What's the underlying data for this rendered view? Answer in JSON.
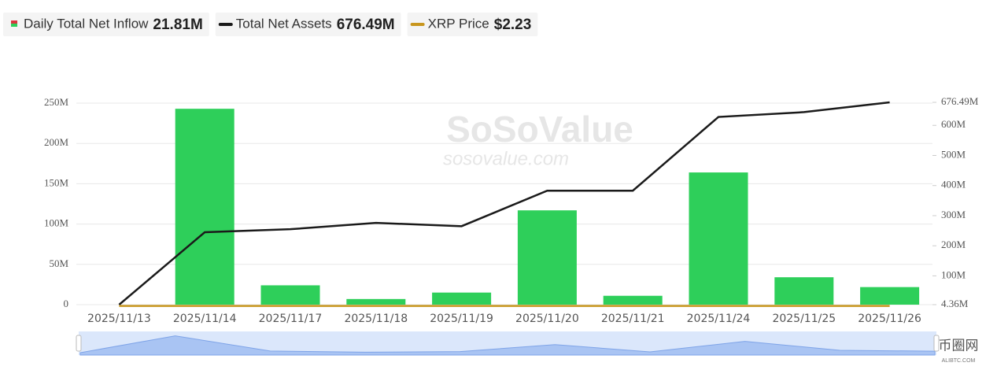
{
  "chart_data": {
    "type": "bar_line",
    "categories": [
      "2025/11/13",
      "2025/11/14",
      "2025/11/17",
      "2025/11/18",
      "2025/11/19",
      "2025/11/20",
      "2025/11/21",
      "2025/11/24",
      "2025/11/25",
      "2025/11/26"
    ],
    "series": [
      {
        "name": "Daily Total Net Inflow",
        "latest_label": "21.81M",
        "type": "bar",
        "color": "#2ecf5a",
        "values": [
          0,
          243000000,
          24000000,
          7000000,
          15000000,
          117000000,
          11000000,
          164000000,
          34000000,
          21810000
        ]
      },
      {
        "name": "Total Net Assets",
        "latest_label": "676.49M",
        "type": "line",
        "axis": "y2",
        "color": "#1a1a1a",
        "values": [
          4360000,
          245000000,
          255000000,
          276000000,
          265000000,
          383000000,
          383000000,
          628000000,
          644000000,
          676490000
        ]
      },
      {
        "name": "XRP Price",
        "latest_label": "$2.23",
        "type": "line",
        "axis": "y2",
        "color": "#c8961e",
        "values": [
          2.41,
          2.28,
          2.2,
          2.12,
          2.1,
          2.05,
          1.95,
          2.05,
          2.2,
          2.23
        ]
      }
    ],
    "ylim": [
      0,
      250000000
    ],
    "yticks": [
      0,
      {
        "value": 50000000,
        "label": "50M"
      },
      {
        "value": 100000000,
        "label": "100M"
      },
      {
        "value": 150000000,
        "label": "150M"
      },
      {
        "value": 200000000,
        "label": "200M"
      },
      {
        "value": 250000000,
        "label": "250M"
      }
    ],
    "y2lim": [
      4360000,
      676490000
    ],
    "y2ticks": [
      {
        "value": 4360000,
        "label": "4.36M"
      },
      {
        "value": 100000000,
        "label": "100M"
      },
      {
        "value": 200000000,
        "label": "200M"
      },
      {
        "value": 300000000,
        "label": "300M"
      },
      {
        "value": 400000000,
        "label": "400M"
      },
      {
        "value": 500000000,
        "label": "500M"
      },
      {
        "value": 600000000,
        "label": "600M"
      },
      {
        "value": 676490000,
        "label": "676.49M"
      }
    ],
    "grid": true,
    "watermark": {
      "brand": "SoSoValue",
      "site": "sosovalue.com"
    },
    "source_logo": {
      "name": "币圈网",
      "site": "ALIBTC.COM"
    }
  }
}
